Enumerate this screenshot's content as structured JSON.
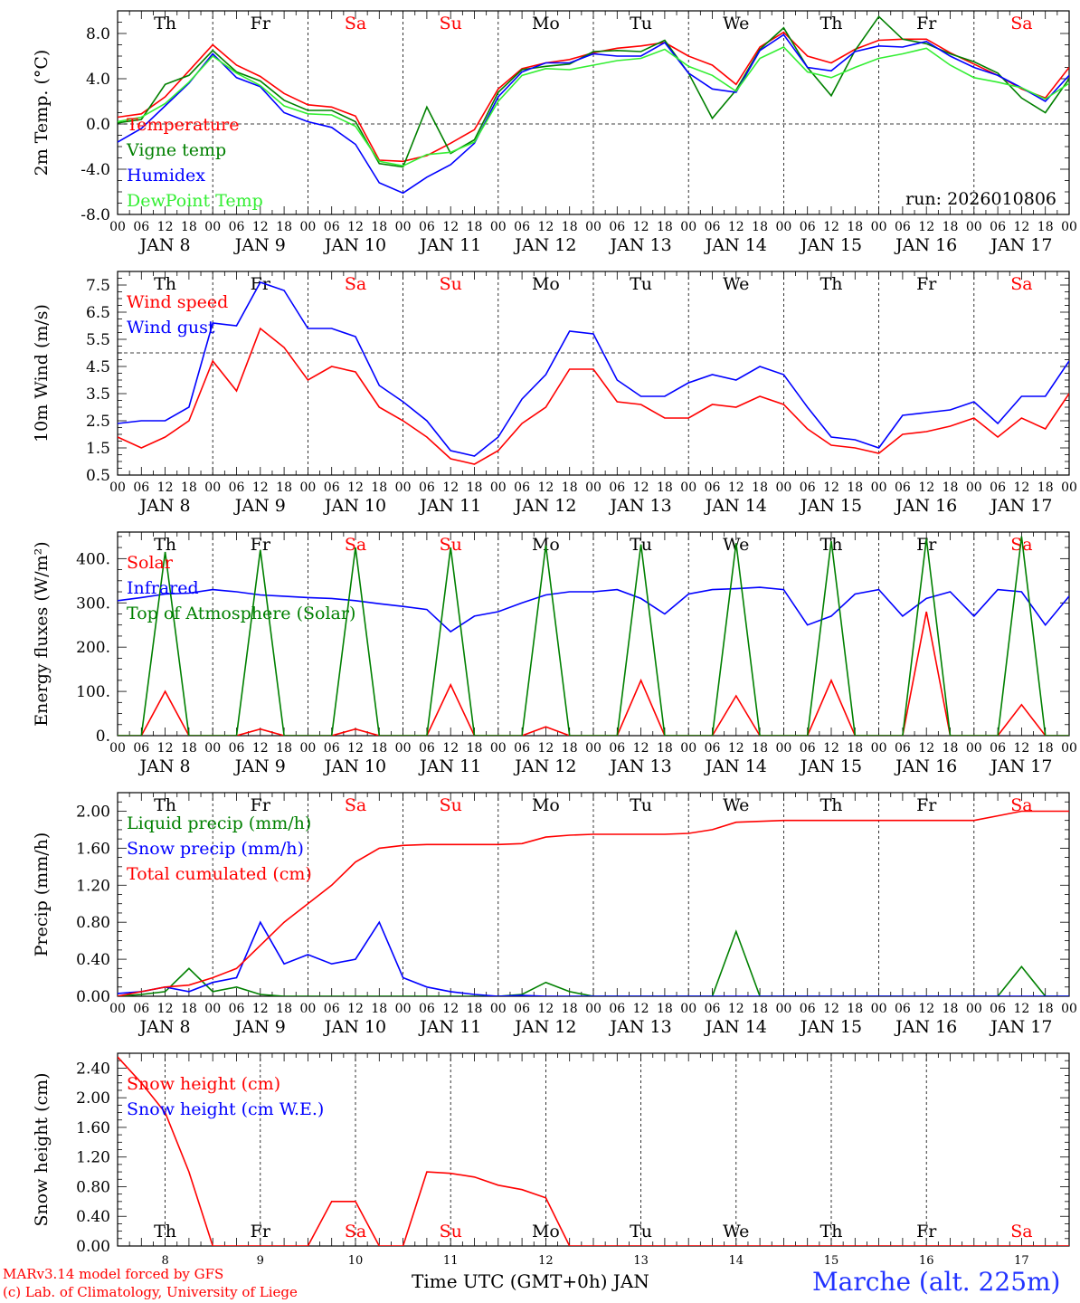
{
  "footer": {
    "model_line1": "MARv3.14 model forced by GFS",
    "model_line2": "(c) Lab. of Climatology, University of Liege",
    "time_axis_label": "Time UTC (GMT+0h) JAN",
    "station": "Marche (alt. 225m)"
  },
  "colors": {
    "red": "#ff0000",
    "green": "#008000",
    "blue": "#0000ff",
    "lightgreen": "#33ee33",
    "saturday_sunday": "#ff0000",
    "weekday": "#000000"
  },
  "days": {
    "weekday_labels": [
      "Th",
      "Fr",
      "Sa",
      "Su",
      "Mo",
      "Tu",
      "We",
      "Th",
      "Fr",
      "Sa"
    ],
    "date_labels": [
      "JAN  8",
      "JAN  9",
      "JAN 10",
      "JAN 11",
      "JAN 12",
      "JAN 13",
      "JAN 14",
      "JAN 15",
      "JAN 16",
      "JAN 17"
    ],
    "hour_labels": [
      "00",
      "06",
      "12",
      "18"
    ],
    "last_hour_label": "00",
    "snow_day_numbers": [
      "8",
      "9",
      "10",
      "11",
      "12",
      "13",
      "14",
      "15",
      "16",
      "17"
    ]
  },
  "chart_data": [
    {
      "type": "line",
      "ylabel": "2m Temp. (°C)",
      "ylim": [
        -8,
        10
      ],
      "yticks": [
        "-8.0",
        "-4.0",
        "0.0",
        "4.0",
        "8.0"
      ],
      "yticks_values": [
        -8,
        -4,
        0,
        4,
        8
      ],
      "dashed_line": 0,
      "annotation": "run: 2026010806",
      "x_hours": [
        0,
        6,
        12,
        18,
        24,
        30,
        36,
        42,
        48,
        54,
        60,
        66,
        72,
        78,
        84,
        90,
        96,
        102,
        108,
        114,
        120,
        126,
        132,
        138,
        144,
        150,
        156,
        162,
        168,
        174,
        180,
        186,
        192,
        198,
        204,
        210,
        216,
        222,
        228,
        234,
        240
      ],
      "series": [
        {
          "name": "Temperature",
          "color": "#ff0000",
          "values": [
            0.6,
            0.9,
            2.4,
            4.7,
            7.0,
            5.2,
            4.2,
            2.7,
            1.7,
            1.5,
            0.7,
            -3.2,
            -3.3,
            -2.8,
            -1.7,
            -0.5,
            3.1,
            4.9,
            5.4,
            5.7,
            6.3,
            6.7,
            6.9,
            7.2,
            6.0,
            5.2,
            3.5,
            6.8,
            8.1,
            6.0,
            5.4,
            6.6,
            7.4,
            7.5,
            7.5,
            6.3,
            5.3,
            4.3,
            3.1,
            2.3,
            5.0
          ]
        },
        {
          "name": "Vigne temp",
          "color": "#008000",
          "values": [
            0.1,
            0.4,
            3.5,
            4.3,
            6.5,
            4.6,
            3.8,
            2.1,
            1.2,
            1.2,
            0.2,
            -3.5,
            -3.8,
            1.5,
            -2.6,
            -1.4,
            2.8,
            4.8,
            5.1,
            5.3,
            6.4,
            6.5,
            6.4,
            7.4,
            4.5,
            0.5,
            3.0,
            6.6,
            8.5,
            5.0,
            2.5,
            6.5,
            9.5,
            7.5,
            7.1,
            6.2,
            5.5,
            4.5,
            2.3,
            1.0,
            4.0
          ]
        },
        {
          "name": "Humidex",
          "color": "#0000ff",
          "values": [
            -1.6,
            -0.4,
            1.6,
            3.6,
            6.2,
            4.1,
            3.3,
            1.0,
            0.2,
            -0.3,
            -1.8,
            -5.2,
            -6.1,
            -4.7,
            -3.6,
            -1.7,
            2.4,
            4.6,
            5.4,
            5.4,
            6.2,
            6.0,
            6.0,
            7.2,
            4.5,
            3.1,
            2.8,
            6.5,
            7.9,
            5.0,
            4.7,
            6.4,
            6.9,
            6.8,
            7.3,
            6.0,
            5.0,
            4.3,
            3.2,
            2.0,
            4.3
          ]
        },
        {
          "name": "DewPoint Temp",
          "color": "#33ee33",
          "values": [
            0.2,
            0.6,
            1.8,
            3.7,
            6.0,
            4.5,
            3.4,
            1.6,
            0.9,
            0.8,
            -0.2,
            -3.3,
            -3.7,
            -2.7,
            -2.5,
            -1.6,
            2.0,
            4.3,
            4.9,
            4.8,
            5.2,
            5.6,
            5.8,
            6.6,
            5.1,
            4.3,
            2.9,
            5.8,
            6.8,
            4.6,
            4.1,
            5.0,
            5.8,
            6.2,
            6.7,
            5.2,
            4.1,
            3.7,
            3.2,
            2.2,
            3.6
          ]
        }
      ]
    },
    {
      "type": "line",
      "ylabel": "10m Wind (m/s)",
      "ylim": [
        0.5,
        8.0
      ],
      "yticks": [
        "0.5",
        "1.5",
        "2.5",
        "3.5",
        "4.5",
        "5.5",
        "6.5",
        "7.5"
      ],
      "yticks_values": [
        0.5,
        1.5,
        2.5,
        3.5,
        4.5,
        5.5,
        6.5,
        7.5
      ],
      "dashed_line": 5.0,
      "x_hours": [
        0,
        6,
        12,
        18,
        24,
        30,
        36,
        42,
        48,
        54,
        60,
        66,
        72,
        78,
        84,
        90,
        96,
        102,
        108,
        114,
        120,
        126,
        132,
        138,
        144,
        150,
        156,
        162,
        168,
        174,
        180,
        186,
        192,
        198,
        204,
        210,
        216,
        222,
        228,
        234,
        240
      ],
      "series": [
        {
          "name": "Wind speed",
          "color": "#ff0000",
          "values": [
            1.9,
            1.5,
            1.9,
            2.5,
            4.7,
            3.6,
            5.9,
            5.2,
            4.0,
            4.5,
            4.3,
            3.0,
            2.5,
            1.9,
            1.1,
            0.9,
            1.4,
            2.4,
            3.0,
            4.4,
            4.4,
            3.2,
            3.1,
            2.6,
            2.6,
            3.1,
            3.0,
            3.4,
            3.1,
            2.2,
            1.6,
            1.5,
            1.3,
            2.0,
            2.1,
            2.3,
            2.6,
            1.9,
            2.6,
            2.2,
            3.5
          ]
        },
        {
          "name": "Wind gust",
          "color": "#0000ff",
          "values": [
            2.4,
            2.5,
            2.5,
            3.0,
            6.1,
            6.0,
            7.6,
            7.3,
            5.9,
            5.9,
            5.6,
            3.8,
            3.2,
            2.5,
            1.4,
            1.2,
            1.9,
            3.3,
            4.2,
            5.8,
            5.7,
            4.0,
            3.4,
            3.4,
            3.9,
            4.2,
            4.0,
            4.5,
            4.2,
            3.0,
            1.9,
            1.8,
            1.5,
            2.7,
            2.8,
            2.9,
            3.2,
            2.4,
            3.4,
            3.4,
            4.7
          ]
        }
      ]
    },
    {
      "type": "line",
      "ylabel": "Energy fluxes (W/m²)",
      "ylim": [
        0,
        460
      ],
      "yticks": [
        "0.",
        "100.",
        "200.",
        "300.",
        "400."
      ],
      "yticks_values": [
        0,
        100,
        200,
        300,
        400
      ],
      "x_hours": [
        0,
        6,
        12,
        18,
        24,
        30,
        36,
        42,
        48,
        54,
        60,
        66,
        72,
        78,
        84,
        90,
        96,
        102,
        108,
        114,
        120,
        126,
        132,
        138,
        144,
        150,
        156,
        162,
        168,
        174,
        180,
        186,
        192,
        198,
        204,
        210,
        216,
        222,
        228,
        234,
        240
      ],
      "series": [
        {
          "name": "Solar",
          "color": "#ff0000",
          "values": [
            0,
            0,
            100,
            0,
            0,
            0,
            15,
            0,
            0,
            0,
            15,
            0,
            0,
            0,
            115,
            0,
            0,
            0,
            20,
            0,
            0,
            0,
            125,
            0,
            0,
            0,
            90,
            0,
            0,
            0,
            125,
            0,
            0,
            0,
            280,
            0,
            0,
            0,
            70,
            0,
            0
          ]
        },
        {
          "name": "Infrared",
          "color": "#0000ff",
          "values": [
            305,
            312,
            320,
            322,
            330,
            325,
            318,
            315,
            312,
            310,
            305,
            298,
            292,
            285,
            235,
            270,
            280,
            300,
            318,
            325,
            325,
            330,
            310,
            275,
            320,
            330,
            332,
            335,
            330,
            250,
            270,
            320,
            330,
            270,
            310,
            325,
            270,
            330,
            325,
            250,
            315
          ]
        },
        {
          "name": "Top of Atmosphere (Solar)",
          "color": "#008000",
          "values": [
            0,
            0,
            415,
            0,
            0,
            0,
            420,
            0,
            0,
            0,
            425,
            0,
            0,
            0,
            425,
            0,
            0,
            0,
            430,
            0,
            0,
            0,
            432,
            0,
            0,
            0,
            435,
            0,
            0,
            0,
            440,
            0,
            0,
            0,
            445,
            0,
            0,
            0,
            450,
            0,
            0
          ]
        }
      ]
    },
    {
      "type": "line",
      "ylabel": "Precip (mm/h)",
      "ylim": [
        0,
        2.2
      ],
      "yticks": [
        "0.00",
        "0.40",
        "0.80",
        "1.20",
        "1.60",
        "2.00"
      ],
      "yticks_values": [
        0,
        0.4,
        0.8,
        1.2,
        1.6,
        2.0
      ],
      "x_hours": [
        0,
        6,
        12,
        18,
        24,
        30,
        36,
        42,
        48,
        54,
        60,
        66,
        72,
        78,
        84,
        90,
        96,
        102,
        108,
        114,
        120,
        126,
        132,
        138,
        144,
        150,
        156,
        162,
        168,
        174,
        180,
        186,
        192,
        198,
        204,
        210,
        216,
        222,
        228,
        234,
        240
      ],
      "series": [
        {
          "name": "Liquid precip (mm/h)",
          "color": "#008000",
          "values": [
            0,
            0.02,
            0.05,
            0.3,
            0.05,
            0.1,
            0.02,
            0,
            0,
            0,
            0,
            0,
            0,
            0,
            0,
            0,
            0,
            0.02,
            0.15,
            0.05,
            0,
            0,
            0,
            0,
            0,
            0,
            0.7,
            0,
            0,
            0,
            0,
            0,
            0,
            0,
            0,
            0,
            0,
            0,
            0.32,
            0,
            0
          ]
        },
        {
          "name": "Snow precip (mm/h)",
          "color": "#0000ff",
          "values": [
            0.03,
            0.05,
            0.1,
            0.05,
            0.15,
            0.2,
            0.8,
            0.35,
            0.45,
            0.35,
            0.4,
            0.8,
            0.2,
            0.1,
            0.05,
            0.02,
            0,
            0.01,
            0,
            0,
            0,
            0,
            0,
            0,
            0,
            0,
            0,
            0,
            0,
            0,
            0,
            0,
            0,
            0,
            0,
            0,
            0,
            0,
            0,
            0,
            0
          ]
        },
        {
          "name": "Total cumulated (cm)",
          "color": "#ff0000",
          "values": [
            0,
            0.05,
            0.1,
            0.12,
            0.2,
            0.3,
            0.55,
            0.8,
            1.0,
            1.2,
            1.45,
            1.6,
            1.63,
            1.64,
            1.64,
            1.64,
            1.64,
            1.65,
            1.72,
            1.74,
            1.75,
            1.75,
            1.75,
            1.75,
            1.76,
            1.8,
            1.88,
            1.89,
            1.9,
            1.9,
            1.9,
            1.9,
            1.9,
            1.9,
            1.9,
            1.9,
            1.9,
            1.95,
            2.0,
            2.0,
            2.0
          ]
        }
      ]
    },
    {
      "type": "line",
      "ylabel": "Snow height (cm)",
      "ylim": [
        0,
        2.6
      ],
      "yticks": [
        "0.00",
        "0.40",
        "0.80",
        "1.20",
        "1.60",
        "2.00",
        "2.40"
      ],
      "yticks_values": [
        0,
        0.4,
        0.8,
        1.2,
        1.6,
        2.0,
        2.4
      ],
      "x_hours": [
        0,
        6,
        12,
        18,
        24,
        30,
        36,
        42,
        48,
        54,
        60,
        66,
        72,
        78,
        84,
        90,
        96,
        102,
        108,
        114,
        120,
        126,
        132,
        138,
        144,
        150,
        156,
        162,
        168,
        174,
        180,
        186,
        192,
        198,
        204,
        210,
        216,
        222,
        228,
        234,
        240
      ],
      "series": [
        {
          "name": "Snow height (cm)",
          "color": "#ff0000",
          "values": [
            2.55,
            2.2,
            1.8,
            1.0,
            0,
            0,
            0,
            0,
            0,
            0.6,
            0.6,
            0,
            0,
            1.0,
            0.98,
            0.93,
            0.82,
            0.76,
            0.65,
            0,
            0,
            0,
            0,
            0,
            0,
            0,
            0,
            0,
            0,
            0,
            0,
            0,
            0,
            0,
            0,
            0,
            0,
            0,
            0,
            0,
            0
          ]
        },
        {
          "name": "Snow height (cm W.E.)",
          "color": "#0000ff",
          "values": []
        }
      ]
    }
  ]
}
